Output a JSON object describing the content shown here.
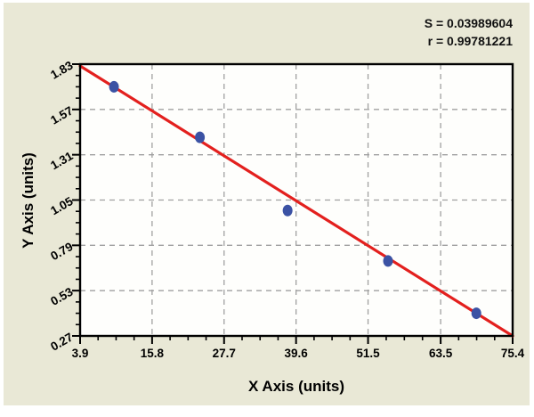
{
  "chart_data": {
    "type": "scatter",
    "title": "",
    "xlabel": "X Axis (units)",
    "ylabel": "Y Axis (units)",
    "x_tick_labels": [
      "3.9",
      "15.8",
      "27.7",
      "39.6",
      "51.5",
      "63.5",
      "75.4"
    ],
    "y_tick_labels": [
      "0.27",
      "0.53",
      "0.79",
      "1.05",
      "1.31",
      "1.57",
      "1.83"
    ],
    "xlim": [
      3.9,
      75.4
    ],
    "ylim": [
      0.27,
      1.83
    ],
    "minor_ticks_per_interval": 3,
    "grid": "dashed",
    "legend": "none",
    "points": [
      {
        "x": 9.5,
        "y": 1.7
      },
      {
        "x": 23.7,
        "y": 1.41
      },
      {
        "x": 38.2,
        "y": 0.99
      },
      {
        "x": 54.8,
        "y": 0.7
      },
      {
        "x": 69.4,
        "y": 0.4
      }
    ],
    "trendline": {
      "x1": 3.9,
      "y1": 1.82,
      "x2": 75.4,
      "y2": 0.27
    },
    "annotations": [
      "S = 0.03989604",
      "r = 0.99781221"
    ],
    "colors": {
      "point": "#3b52a4",
      "trend_line": "#e3201e",
      "grid_line": "#a0a0a0",
      "frame": "#000000",
      "plot_background": "#fefefc",
      "canvas_background": "#e9e8d6",
      "text": "#000000"
    }
  }
}
